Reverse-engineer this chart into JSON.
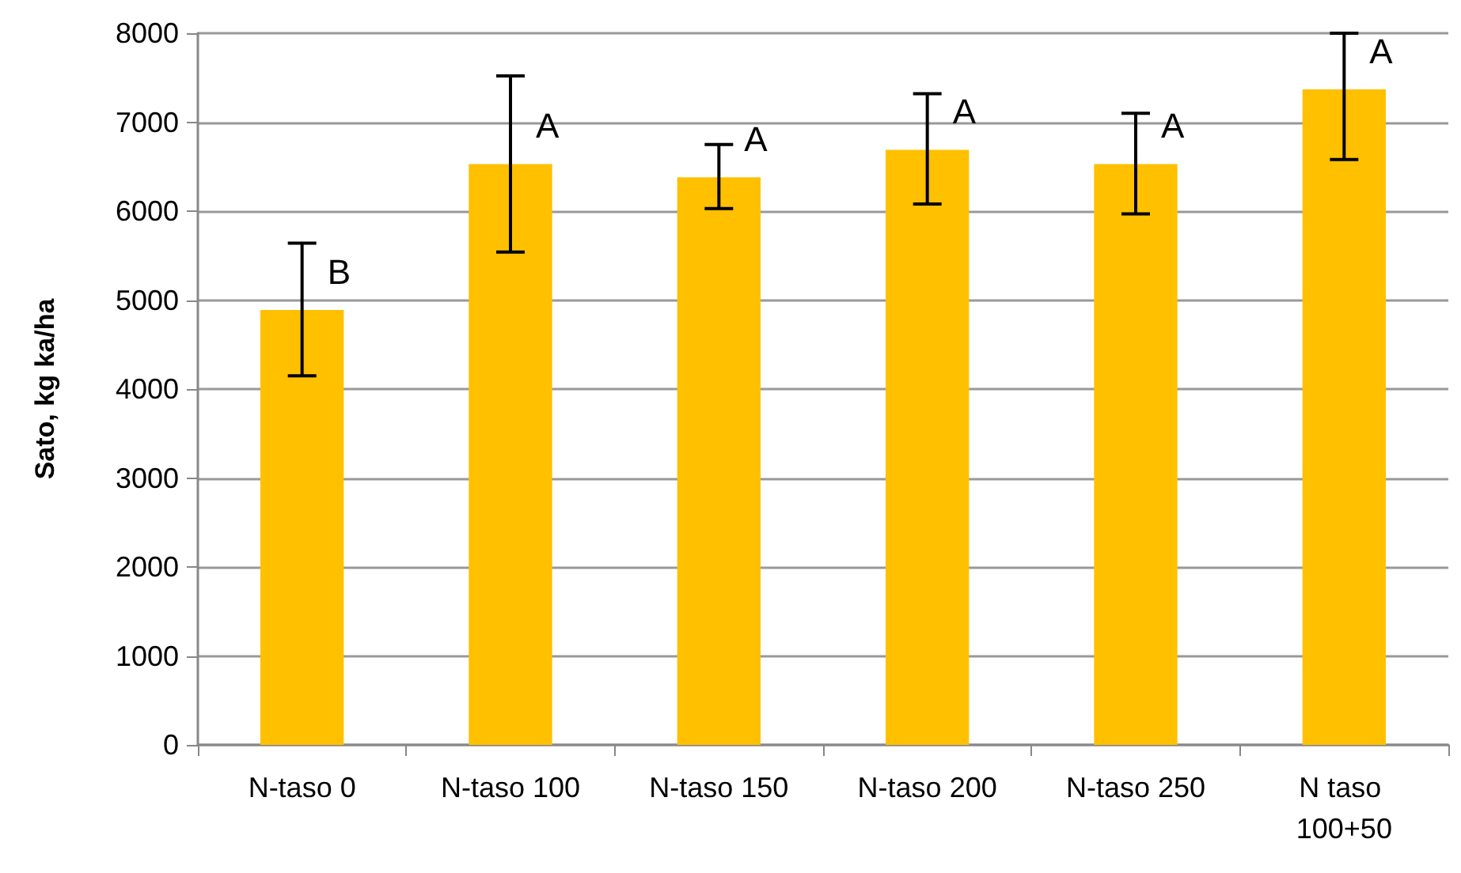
{
  "chart_data": {
    "type": "bar",
    "ylabel": "Sato, kg ka/ha",
    "categories": [
      "N-taso 0",
      "N-taso 100",
      "N-taso 150",
      "N-taso 200",
      "N-taso 250",
      "N taso 100+50"
    ],
    "values": [
      4890,
      6530,
      6380,
      6690,
      6530,
      7370
    ],
    "errors": [
      [
        4150,
        5640
      ],
      [
        5540,
        7520
      ],
      [
        6030,
        6750
      ],
      [
        6080,
        7320
      ],
      [
        5970,
        7100
      ],
      [
        6580,
        8000
      ]
    ],
    "color": "#ffc000",
    "ylim": [
      0,
      8000
    ],
    "yticks": [
      0,
      1000,
      2000,
      3000,
      4000,
      5000,
      6000,
      7000,
      8000
    ],
    "grid": "y",
    "annotations": [
      {
        "text": "B",
        "x": "N-taso 0",
        "y": 4890
      },
      {
        "text": "A",
        "x": "N-taso 100",
        "y": 6530
      },
      {
        "text": "A",
        "x": "N-taso 150",
        "y": 6380
      },
      {
        "text": "A",
        "x": "N-taso 200",
        "y": 6690
      },
      {
        "text": "A",
        "x": "N-taso 250",
        "y": 6530
      },
      {
        "text": "A",
        "x": "N taso 100+50",
        "y": 7370
      }
    ]
  }
}
